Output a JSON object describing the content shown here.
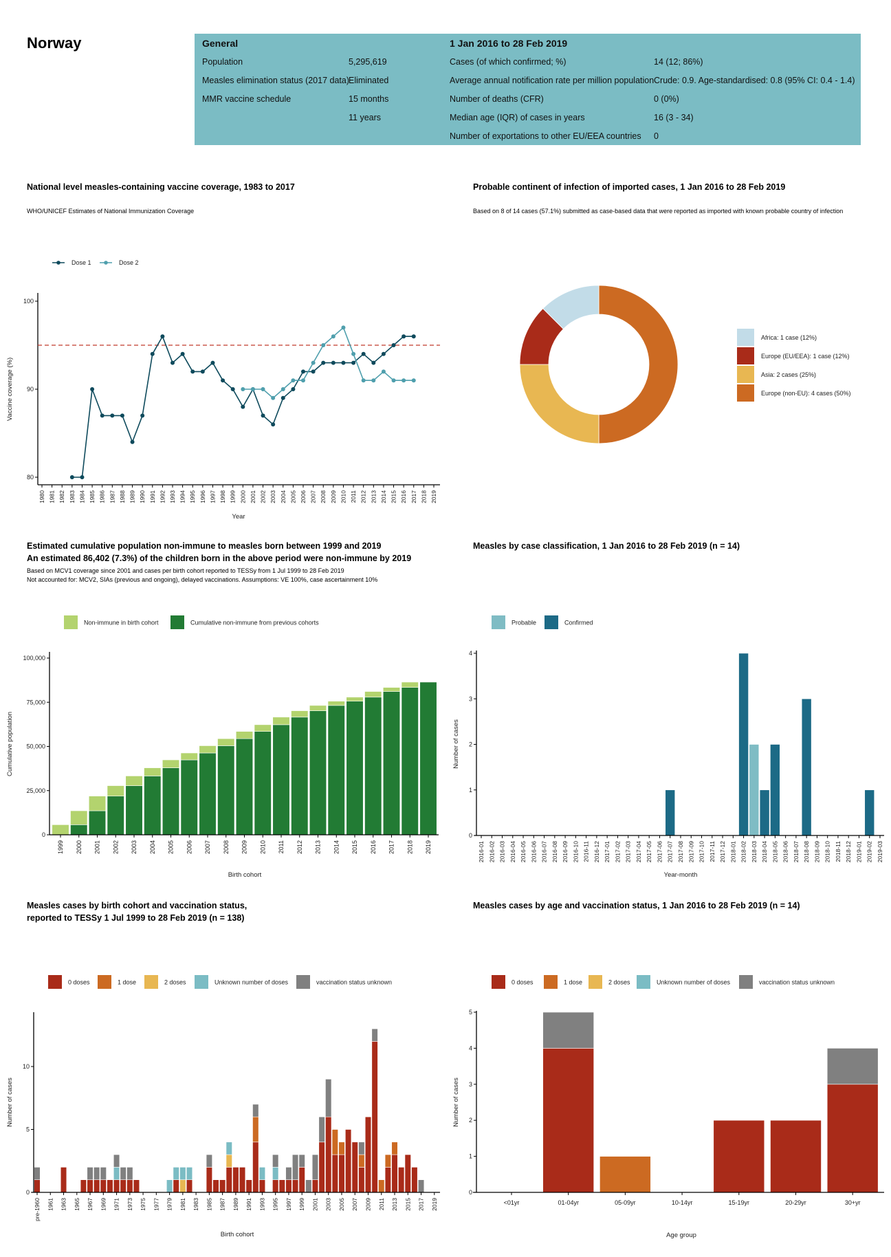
{
  "header": {
    "country": "Norway"
  },
  "info": {
    "general_title": "General",
    "period_title": "1 Jan 2016 to 28 Feb 2019",
    "general_rows": [
      {
        "label": "Population",
        "value": "5,295,619"
      },
      {
        "label": "Measles elimination status (2017 data)",
        "value": "Eliminated"
      },
      {
        "label": "MMR vaccine schedule",
        "value": "15 months"
      },
      {
        "label": "",
        "value": "11 years"
      }
    ],
    "period_rows": [
      {
        "label": "Cases (of which confirmed; %)",
        "value": "14 (12; 86%)"
      },
      {
        "label": "Average annual notification rate per million population",
        "value": "Crude: 0.9. Age-standardised: 0.8 (95% CI: 0.4 - 1.4)"
      },
      {
        "label": "Number of deaths (CFR)",
        "value": "0 (0%)"
      },
      {
        "label": "Median age (IQR) of cases in years",
        "value": "16 (3 - 34)"
      },
      {
        "label": "Number of exportations to other EU/EEA countries",
        "value": "0"
      }
    ]
  },
  "colors": {
    "info_bg": "#7bbcc4",
    "dose1": "#0e4a5c",
    "dose2": "#4f9fad",
    "target_line": "#c0392b",
    "non_immune_cohort": "#b3d36e",
    "cumulative_previous": "#227b34",
    "probable": "#7fbcc4",
    "confirmed": "#1c6a86",
    "zero_doses": "#a92b19",
    "one_dose": "#cc6a22",
    "two_doses": "#e8b752",
    "unknown_doses": "#7bbcc4",
    "status_unknown": "#808080",
    "africa": "#c2dce8"
  },
  "chart_data": [
    {
      "type": "line",
      "title": "National level measles-containing vaccine coverage, 1983 to 2017",
      "subtitle": "WHO/UNICEF Estimates of National Immunization Coverage",
      "xlabel": "Year",
      "ylabel": "Vaccine coverage (%)",
      "xlim": [
        1980,
        2019
      ],
      "ylim": [
        79.1,
        100.9
      ],
      "yticks": [
        80,
        90,
        100
      ],
      "reference_line": 95,
      "legend_position": "top-left",
      "series": [
        {
          "name": "Dose 1",
          "x": [
            1983,
            1984,
            1985,
            1986,
            1987,
            1988,
            1989,
            1990,
            1991,
            1992,
            1993,
            1994,
            1995,
            1996,
            1997,
            1998,
            1999,
            2000,
            2001,
            2002,
            2003,
            2004,
            2005,
            2006,
            2007,
            2008,
            2009,
            2010,
            2011,
            2012,
            2013,
            2014,
            2015,
            2016,
            2017
          ],
          "values": [
            80,
            80,
            90,
            87,
            87,
            87,
            84,
            87,
            94,
            96,
            93,
            94,
            92,
            92,
            93,
            91,
            90,
            88,
            90,
            87,
            86,
            89,
            90,
            92,
            92,
            93,
            93,
            93,
            93,
            94,
            93,
            94,
            95,
            96,
            96
          ]
        },
        {
          "name": "Dose 2",
          "x": [
            2000,
            2001,
            2002,
            2003,
            2004,
            2005,
            2006,
            2007,
            2008,
            2009,
            2010,
            2011,
            2012,
            2013,
            2014,
            2015,
            2016,
            2017
          ],
          "values": [
            90,
            90,
            90,
            89,
            90,
            91,
            91,
            93,
            95,
            96,
            97,
            94,
            91,
            91,
            92,
            91,
            91,
            91
          ]
        }
      ]
    },
    {
      "type": "pie",
      "title": "Probable continent of infection of imported cases, 1 Jan 2016 to 28 Feb 2019",
      "subtitle": "Based on 8 of 14 cases (57.1%) submitted as case-based data that were reported as imported with known probable country of infection",
      "legend_position": "right",
      "slices": [
        {
          "name": "Africa: 1 case (12%)",
          "value": 1,
          "color": "#c2dce8"
        },
        {
          "name": "Europe (EU/EEA): 1 case (12%)",
          "value": 1,
          "color": "#a92b19"
        },
        {
          "name": "Asia: 2 cases (25%)",
          "value": 2,
          "color": "#e8b752"
        },
        {
          "name": "Europe (non-EU): 4 cases (50%)",
          "value": 4,
          "color": "#cc6a22"
        }
      ]
    },
    {
      "type": "bar",
      "title": "Estimated cumulative population non-immune to measles born between 1999 and 2019",
      "title2": "An estimated 86,402 (7.3%) of the children born in the above period were non-immune by 2019",
      "subtitle": "Based on MCV1 coverage since 2001 and cases per birth cohort reported to TESSy from 1 Jul 1999 to 28 Feb 2019",
      "subtitle2": "Not accounted for: MCV2, SIAs (previous and ongoing), delayed vaccinations. Assumptions: VE 100%, case ascertainment 10%",
      "xlabel": "Birth cohort",
      "ylabel": "Cumulative population",
      "ylim": [
        0,
        100000
      ],
      "yticks": [
        0,
        25000,
        50000,
        75000,
        100000
      ],
      "ytick_labels": [
        "0",
        "25,000",
        "50,000",
        "75,000",
        "100,000"
      ],
      "stacked": true,
      "legend_position": "top-left",
      "categories": [
        "1999",
        "2000",
        "2001",
        "2002",
        "2003",
        "2004",
        "2005",
        "2006",
        "2007",
        "2008",
        "2009",
        "2010",
        "2011",
        "2012",
        "2013",
        "2014",
        "2015",
        "2016",
        "2017",
        "2018",
        "2019"
      ],
      "series": [
        {
          "name": "Cumulative non-immune from previous cohorts",
          "color": "#227b34",
          "values": [
            0,
            5700,
            13600,
            21900,
            27800,
            33300,
            37900,
            42400,
            46300,
            50400,
            54400,
            58500,
            62300,
            66600,
            70200,
            73200,
            75600,
            77900,
            81100,
            83400,
            86400
          ]
        },
        {
          "name": "Non-immune in birth cohort",
          "color": "#b3d36e",
          "values": [
            5700,
            7900,
            8300,
            5900,
            5500,
            4600,
            4500,
            3900,
            4100,
            4000,
            4100,
            3800,
            4300,
            3600,
            3000,
            2400,
            2300,
            3200,
            2300,
            3000,
            0
          ]
        }
      ],
      "legend_order": [
        1,
        0
      ]
    },
    {
      "type": "bar",
      "title": "Measles by case classification, 1 Jan 2016 to 28 Feb 2019 (n = 14)",
      "xlabel": "Year-month",
      "ylabel": "Number of cases",
      "ylim": [
        0,
        4
      ],
      "yticks": [
        0,
        1,
        2,
        3,
        4
      ],
      "stacked": true,
      "legend_position": "top-left",
      "categories": [
        "2016-01",
        "2016-02",
        "2016-03",
        "2016-04",
        "2016-05",
        "2016-06",
        "2016-07",
        "2016-08",
        "2016-09",
        "2016-10",
        "2016-11",
        "2016-12",
        "2017-01",
        "2017-02",
        "2017-03",
        "2017-04",
        "2017-05",
        "2017-06",
        "2017-07",
        "2017-08",
        "2017-09",
        "2017-10",
        "2017-11",
        "2017-12",
        "2018-01",
        "2018-02",
        "2018-03",
        "2018-04",
        "2018-05",
        "2018-06",
        "2018-07",
        "2018-08",
        "2018-09",
        "2018-10",
        "2018-11",
        "2018-12",
        "2019-01",
        "2019-02",
        "2019-03"
      ],
      "series": [
        {
          "name": "Probable",
          "color": "#7fbcc4",
          "values": [
            0,
            0,
            0,
            0,
            0,
            0,
            0,
            0,
            0,
            0,
            0,
            0,
            0,
            0,
            0,
            0,
            0,
            0,
            0,
            0,
            0,
            0,
            0,
            0,
            0,
            0,
            2,
            0,
            0,
            0,
            0,
            0,
            0,
            0,
            0,
            0,
            0,
            0,
            0
          ]
        },
        {
          "name": "Confirmed",
          "color": "#1c6a86",
          "values": [
            0,
            0,
            0,
            0,
            0,
            0,
            0,
            0,
            0,
            0,
            0,
            0,
            0,
            0,
            0,
            0,
            0,
            0,
            1,
            0,
            0,
            0,
            0,
            0,
            0,
            4,
            0,
            1,
            2,
            0,
            0,
            3,
            0,
            0,
            0,
            0,
            0,
            1,
            0
          ]
        }
      ]
    },
    {
      "type": "bar",
      "title": "Measles cases by birth cohort and vaccination status,",
      "title2": "reported to TESSy 1 Jul 1999 to 28 Feb 2019 (n = 138)",
      "xlabel": "Birth cohort",
      "ylabel": "Number of cases",
      "ylim": [
        0,
        14
      ],
      "yticks": [
        0,
        5,
        10
      ],
      "stacked": true,
      "label_every": 2,
      "legend_position": "top-left",
      "categories": [
        "pre-1960",
        "1960",
        "1961",
        "1962",
        "1963",
        "1964",
        "1965",
        "1966",
        "1967",
        "1968",
        "1969",
        "1970",
        "1971",
        "1972",
        "1973",
        "1974",
        "1975",
        "1976",
        "1977",
        "1978",
        "1979",
        "1980",
        "1981",
        "1982",
        "1983",
        "1984",
        "1985",
        "1986",
        "1987",
        "1988",
        "1989",
        "1990",
        "1991",
        "1992",
        "1993",
        "1994",
        "1995",
        "1996",
        "1997",
        "1998",
        "1999",
        "2000",
        "2001",
        "2002",
        "2003",
        "2004",
        "2005",
        "2006",
        "2007",
        "2008",
        "2009",
        "2010",
        "2011",
        "2012",
        "2013",
        "2014",
        "2015",
        "2016",
        "2017",
        "2018",
        "2019"
      ],
      "series": [
        {
          "name": "0 doses",
          "color": "#a92b19",
          "values": [
            1,
            0,
            0,
            0,
            2,
            0,
            0,
            1,
            1,
            1,
            1,
            1,
            1,
            1,
            1,
            1,
            0,
            0,
            0,
            0,
            0,
            1,
            0,
            1,
            0,
            0,
            2,
            1,
            1,
            2,
            2,
            2,
            1,
            4,
            1,
            0,
            1,
            1,
            1,
            1,
            2,
            0,
            1,
            4,
            6,
            3,
            3,
            5,
            4,
            2,
            6,
            12,
            0,
            2,
            3,
            2,
            3,
            2,
            0,
            0,
            0
          ]
        },
        {
          "name": "1 dose",
          "color": "#cc6a22",
          "values": [
            0,
            0,
            0,
            0,
            0,
            0,
            0,
            0,
            0,
            0,
            0,
            0,
            0,
            0,
            0,
            0,
            0,
            0,
            0,
            0,
            0,
            0,
            0,
            0,
            0,
            0,
            0,
            0,
            0,
            0,
            0,
            0,
            0,
            2,
            0,
            0,
            0,
            0,
            0,
            0,
            0,
            0,
            0,
            0,
            0,
            2,
            1,
            0,
            0,
            1,
            0,
            0,
            1,
            1,
            1,
            0,
            0,
            0,
            0,
            0,
            0
          ]
        },
        {
          "name": "2 doses",
          "color": "#e8b752",
          "values": [
            0,
            0,
            0,
            0,
            0,
            0,
            0,
            0,
            0,
            0,
            0,
            0,
            0,
            0,
            0,
            0,
            0,
            0,
            0,
            0,
            0,
            0,
            1,
            0,
            0,
            0,
            0,
            0,
            0,
            1,
            0,
            0,
            0,
            0,
            0,
            0,
            0,
            0,
            0,
            0,
            0,
            0,
            0,
            0,
            0,
            0,
            0,
            0,
            0,
            0,
            0,
            0,
            0,
            0,
            0,
            0,
            0,
            0,
            0,
            0,
            0
          ]
        },
        {
          "name": "Unknown number of doses",
          "color": "#7bbcc4",
          "values": [
            0,
            0,
            0,
            0,
            0,
            0,
            0,
            0,
            0,
            0,
            0,
            0,
            1,
            0,
            0,
            0,
            0,
            0,
            0,
            0,
            1,
            1,
            1,
            1,
            0,
            0,
            0,
            0,
            0,
            1,
            0,
            0,
            0,
            0,
            1,
            0,
            1,
            0,
            0,
            0,
            0,
            0,
            0,
            0,
            0,
            0,
            0,
            0,
            0,
            0,
            0,
            0,
            0,
            0,
            0,
            0,
            0,
            0,
            0,
            0,
            0
          ]
        },
        {
          "name": "vaccination status unknown",
          "color": "#808080",
          "values": [
            1,
            0,
            0,
            0,
            0,
            0,
            0,
            0,
            1,
            1,
            1,
            0,
            1,
            1,
            1,
            0,
            0,
            0,
            0,
            0,
            0,
            0,
            0,
            0,
            0,
            0,
            1,
            0,
            0,
            0,
            0,
            0,
            0,
            1,
            0,
            0,
            1,
            0,
            1,
            2,
            1,
            1,
            2,
            2,
            3,
            0,
            0,
            0,
            0,
            1,
            0,
            1,
            0,
            0,
            0,
            0,
            0,
            0,
            1,
            0,
            0
          ]
        }
      ]
    },
    {
      "type": "bar",
      "title": "Measles cases by age and vaccination status, 1 Jan 2016 to 28 Feb 2019 (n = 14)",
      "xlabel": "Age group",
      "ylabel": "Number of cases",
      "ylim": [
        0,
        5
      ],
      "yticks": [
        0,
        1,
        2,
        3,
        4,
        5
      ],
      "stacked": true,
      "legend_position": "top-left",
      "categories": [
        "<01yr",
        "01-04yr",
        "05-09yr",
        "10-14yr",
        "15-19yr",
        "20-29yr",
        "30+yr"
      ],
      "series": [
        {
          "name": "0 doses",
          "color": "#a92b19",
          "values": [
            0,
            4,
            0,
            0,
            2,
            2,
            3
          ]
        },
        {
          "name": "1 dose",
          "color": "#cc6a22",
          "values": [
            0,
            0,
            1,
            0,
            0,
            0,
            0
          ]
        },
        {
          "name": "2 doses",
          "color": "#e8b752",
          "values": [
            0,
            0,
            0,
            0,
            0,
            0,
            0
          ]
        },
        {
          "name": "Unknown number of doses",
          "color": "#7bbcc4",
          "values": [
            0,
            0,
            0,
            0,
            0,
            0,
            0
          ]
        },
        {
          "name": "vaccination status unknown",
          "color": "#808080",
          "values": [
            0,
            1,
            0,
            0,
            0,
            0,
            1
          ]
        }
      ]
    }
  ]
}
